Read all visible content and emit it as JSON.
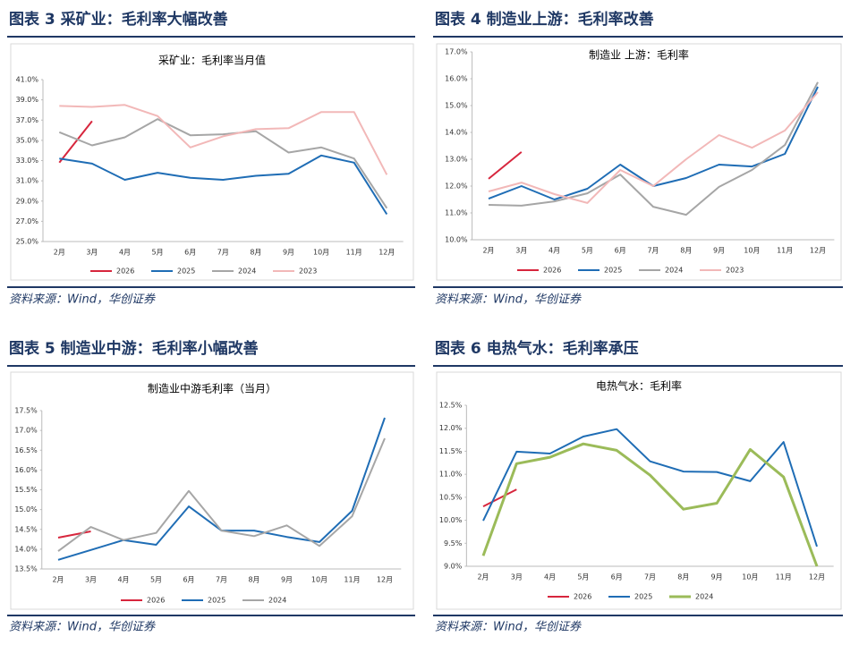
{
  "chart_data": [
    {
      "type": "line",
      "heading": "图表 3 采矿业：毛利率大幅改善",
      "title": "采矿业：毛利率当月值",
      "source": "资料来源：Wind，华创证券",
      "categories": [
        "2月",
        "3月",
        "4月",
        "5月",
        "6月",
        "7月",
        "8月",
        "9月",
        "10月",
        "11月",
        "12月"
      ],
      "ylim": [
        25,
        41
      ],
      "yticks": [
        {
          "value": 25,
          "label": "25.0%"
        },
        {
          "value": 27,
          "label": "27.0%"
        },
        {
          "value": 29,
          "label": "29.0%"
        },
        {
          "value": 31,
          "label": "31.0%"
        },
        {
          "value": 33,
          "label": "33.0%"
        },
        {
          "value": 35,
          "label": "35.0%"
        },
        {
          "value": 37,
          "label": "37.0%"
        },
        {
          "value": 39,
          "label": "39.0%"
        },
        {
          "value": 41,
          "label": "41.0%"
        }
      ],
      "series": [
        {
          "name": "2026",
          "color": "#d7263d",
          "values": [
            32.8,
            36.9,
            null,
            null,
            null,
            null,
            null,
            null,
            null,
            null,
            null
          ]
        },
        {
          "name": "2025",
          "color": "#1f6db5",
          "values": [
            33.2,
            32.7,
            31.1,
            31.8,
            31.3,
            31.1,
            31.5,
            31.7,
            33.5,
            32.8,
            27.7
          ]
        },
        {
          "name": "2024",
          "color": "#a6a6a6",
          "values": [
            35.8,
            34.5,
            35.3,
            37.1,
            35.5,
            35.6,
            35.9,
            33.8,
            34.3,
            33.2,
            28.3
          ]
        },
        {
          "name": "2023",
          "color": "#f2b8b8",
          "values": [
            38.4,
            38.3,
            38.5,
            37.4,
            34.3,
            35.4,
            36.1,
            36.2,
            37.8,
            37.8,
            31.6
          ]
        }
      ]
    },
    {
      "type": "line",
      "heading": "图表 4 制造业上游：毛利率改善",
      "title": "制造业 上游：毛利率",
      "source": "资料来源：Wind，华创证券",
      "categories": [
        "2月",
        "3月",
        "4月",
        "5月",
        "6月",
        "7月",
        "8月",
        "9月",
        "10月",
        "11月",
        "12月"
      ],
      "ylim": [
        10,
        17
      ],
      "yticks": [
        {
          "value": 10,
          "label": "10.0%"
        },
        {
          "value": 11,
          "label": "11.0%"
        },
        {
          "value": 12,
          "label": "12.0%"
        },
        {
          "value": 13,
          "label": "13.0%"
        },
        {
          "value": 14,
          "label": "14.0%"
        },
        {
          "value": 15,
          "label": "15.0%"
        },
        {
          "value": 16,
          "label": "16.0%"
        },
        {
          "value": 17,
          "label": "17.0%"
        }
      ],
      "series": [
        {
          "name": "2026",
          "color": "#d7263d",
          "values": [
            12.27,
            13.27,
            null,
            null,
            null,
            null,
            null,
            null,
            null,
            null,
            null
          ]
        },
        {
          "name": "2025",
          "color": "#1f6db5",
          "values": [
            11.53,
            12.0,
            11.5,
            11.9,
            12.8,
            12.0,
            12.3,
            12.8,
            12.73,
            13.2,
            15.7
          ]
        },
        {
          "name": "2024",
          "color": "#a6a6a6",
          "values": [
            11.3,
            11.27,
            11.43,
            11.73,
            12.43,
            11.23,
            10.93,
            11.97,
            12.6,
            13.53,
            15.87
          ]
        },
        {
          "name": "2023",
          "color": "#f2b8b8",
          "values": [
            11.8,
            12.13,
            11.7,
            11.37,
            12.6,
            12.0,
            13.0,
            13.9,
            13.43,
            14.07,
            15.5
          ]
        }
      ]
    },
    {
      "type": "line",
      "heading": "图表 5 制造业中游：毛利率小幅改善",
      "title": "制造业中游毛利率（当月）",
      "source": "资料来源：Wind，华创证券",
      "categories": [
        "2月",
        "3月",
        "4月",
        "5月",
        "6月",
        "7月",
        "8月",
        "9月",
        "10月",
        "11月",
        "12月"
      ],
      "ylim": [
        13.5,
        17.5
      ],
      "yticks": [
        {
          "value": 13.5,
          "label": "13.5%"
        },
        {
          "value": 14,
          "label": "14.0%"
        },
        {
          "value": 14.5,
          "label": "14.5%"
        },
        {
          "value": 15,
          "label": "15.0%"
        },
        {
          "value": 15.5,
          "label": "15.5%"
        },
        {
          "value": 16,
          "label": "16.0%"
        },
        {
          "value": 16.5,
          "label": "16.5%"
        },
        {
          "value": 17,
          "label": "17.0%"
        },
        {
          "value": 17.5,
          "label": "17.5%"
        }
      ],
      "series": [
        {
          "name": "2026",
          "color": "#d7263d",
          "values": [
            14.29,
            14.45,
            null,
            null,
            null,
            null,
            null,
            null,
            null,
            null,
            null
          ]
        },
        {
          "name": "2025",
          "color": "#1f6db5",
          "values": [
            13.73,
            13.98,
            14.23,
            14.11,
            15.08,
            14.47,
            14.47,
            14.31,
            14.18,
            14.97,
            17.32
          ]
        },
        {
          "name": "2024",
          "color": "#a6a6a6",
          "values": [
            13.95,
            14.56,
            14.23,
            14.41,
            15.47,
            14.47,
            14.33,
            14.6,
            14.08,
            14.83,
            16.8
          ]
        }
      ]
    },
    {
      "type": "line",
      "heading": "图表 6 电热气水：毛利率承压",
      "title": "电热气水：毛利率",
      "source": "资料来源：Wind，华创证券",
      "categories": [
        "2月",
        "3月",
        "4月",
        "5月",
        "6月",
        "7月",
        "8月",
        "9月",
        "10月",
        "11月",
        "12月"
      ],
      "ylim": [
        9,
        12.5
      ],
      "yticks": [
        {
          "value": 9,
          "label": "9.0%"
        },
        {
          "value": 9.5,
          "label": "9.5%"
        },
        {
          "value": 10,
          "label": "10.0%"
        },
        {
          "value": 10.5,
          "label": "10.5%"
        },
        {
          "value": 11,
          "label": "11.0%"
        },
        {
          "value": 11.5,
          "label": "11.5%"
        },
        {
          "value": 12,
          "label": "12.0%"
        },
        {
          "value": 12.5,
          "label": "12.5%"
        }
      ],
      "series": [
        {
          "name": "2026",
          "color": "#d7263d",
          "values": [
            10.3,
            10.67,
            null,
            null,
            null,
            null,
            null,
            null,
            null,
            null,
            null
          ]
        },
        {
          "name": "2025",
          "color": "#1f6db5",
          "values": [
            9.99,
            11.49,
            11.45,
            11.82,
            11.98,
            11.28,
            11.06,
            11.05,
            10.85,
            11.7,
            9.43
          ]
        },
        {
          "name": "2024",
          "color": "#9bbb59",
          "values": [
            9.23,
            11.23,
            11.37,
            11.66,
            11.52,
            10.98,
            10.24,
            10.37,
            11.54,
            10.94,
            9.0
          ]
        }
      ]
    }
  ]
}
